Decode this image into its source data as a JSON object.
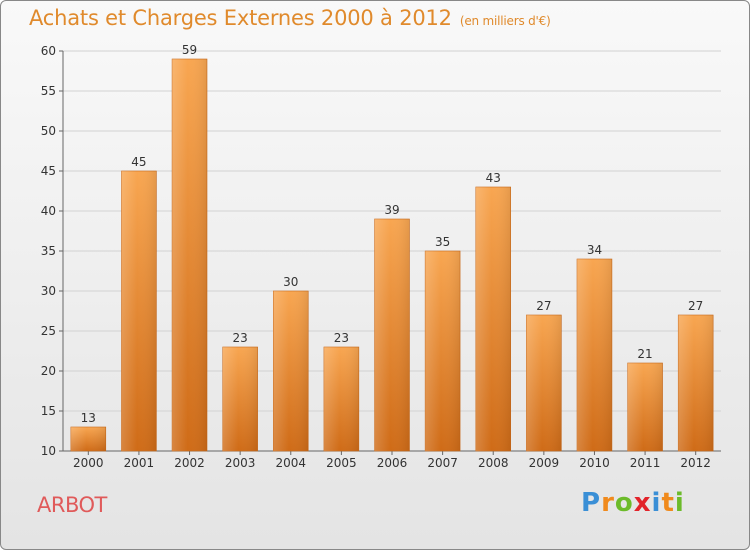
{
  "header": {
    "title": "Achats et Charges Externes 2000 à 2012",
    "unit": "(en milliers d'€)"
  },
  "footer": {
    "place": "ARBOT",
    "logo_letters": [
      "P",
      "r",
      "o",
      "x",
      "i",
      "t",
      "i"
    ],
    "logo_colors": [
      "#3a8fd6",
      "#f08a1c",
      "#6cbb2a",
      "#e2232a",
      "#3a8fd6",
      "#f08a1c",
      "#6cbb2a"
    ]
  },
  "chart_data": {
    "type": "bar",
    "categories": [
      "2000",
      "2001",
      "2002",
      "2003",
      "2004",
      "2005",
      "2006",
      "2007",
      "2008",
      "2009",
      "2010",
      "2011",
      "2012"
    ],
    "values": [
      13,
      45,
      59,
      23,
      30,
      23,
      39,
      35,
      43,
      27,
      34,
      21,
      27
    ],
    "ylim": [
      10,
      60
    ],
    "yticks": [
      10,
      15,
      20,
      25,
      30,
      35,
      40,
      45,
      50,
      55,
      60
    ],
    "title": "Achats et Charges Externes 2000 à 2012",
    "xlabel": "",
    "ylabel": "",
    "grid": true,
    "bar_color": "#f0912f",
    "bar_color_dark": "#cc6a16"
  }
}
